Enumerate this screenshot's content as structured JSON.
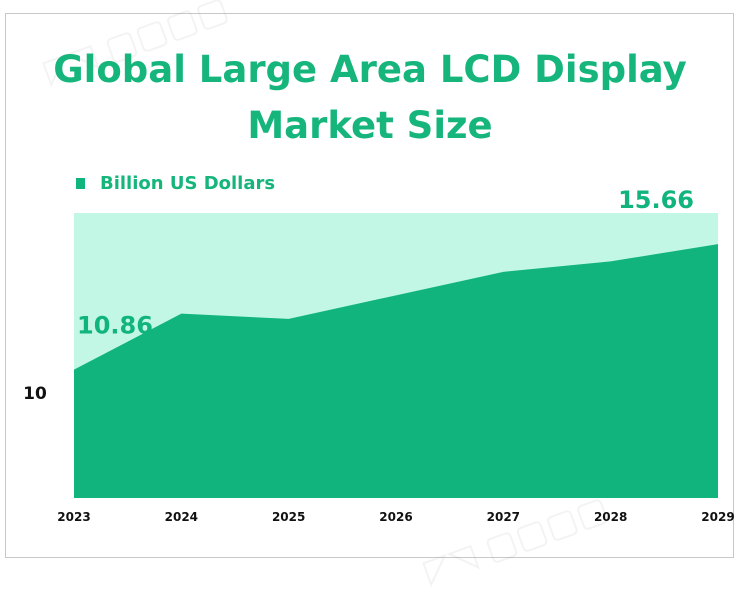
{
  "chart_data": {
    "type": "area",
    "title": "Global Large Area LCD Display Market Size",
    "title_lines": [
      "Global Large Area LCD Display",
      "Market Size"
    ],
    "categories": [
      "2023",
      "2024",
      "2025",
      "2026",
      "2027",
      "2028",
      "2029"
    ],
    "series": [
      {
        "name": "Billion US Dollars",
        "values": [
          10.86,
          13.0,
          12.8,
          13.7,
          14.6,
          15.0,
          15.66
        ],
        "color": "#10b47c"
      }
    ],
    "area_background_color": "#c2f7e6",
    "data_labels": [
      {
        "category": "2023",
        "text": "10.86"
      },
      {
        "category": "2029",
        "text": "15.66"
      }
    ],
    "y_tick_labels": [
      "10"
    ],
    "ylim": [
      5.95,
      16.85
    ],
    "grid": false,
    "legend_position": "top-left",
    "xlabel": "",
    "ylabel": ""
  }
}
